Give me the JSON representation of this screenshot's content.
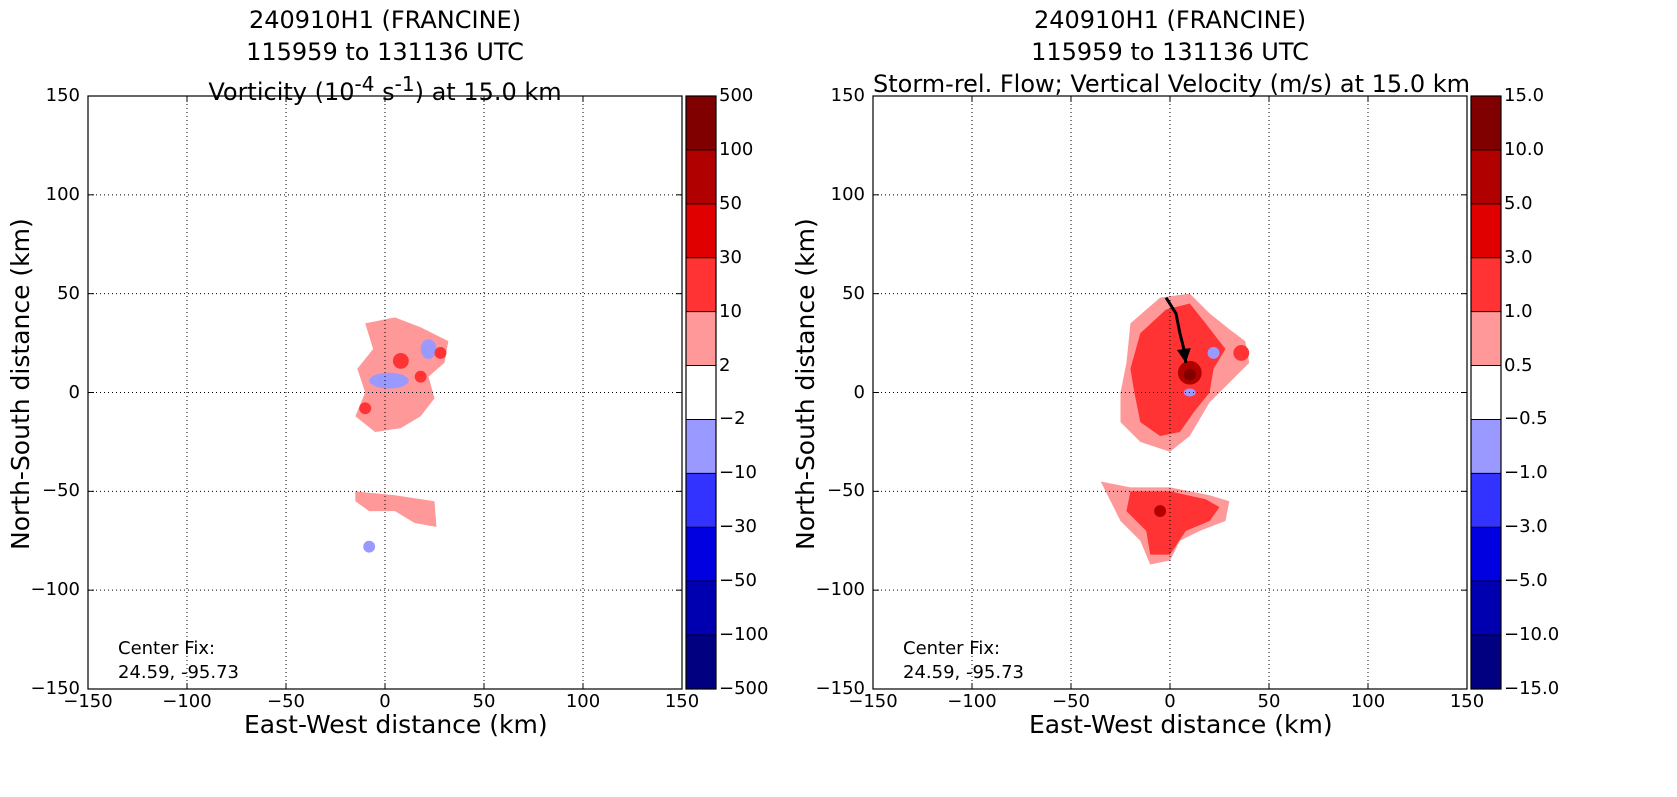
{
  "chart_data": [
    {
      "type": "heatmap",
      "title_lines": [
        "240910H1 (FRANCINE)",
        "115959 to 131136 UTC"
      ],
      "title_var_html": "Vorticity (10<sup>-4</sup> s<sup>-1</sup>) at 15.0 km",
      "xlabel": "East-West distance (km)",
      "ylabel": "North-South distance (km)",
      "xlim": [
        -150,
        150
      ],
      "ylim": [
        -150,
        150
      ],
      "xticks": [
        -150,
        -100,
        -50,
        0,
        50,
        100,
        150
      ],
      "yticks": [
        -150,
        -100,
        -50,
        0,
        50,
        100,
        150
      ],
      "grid": true,
      "colorbar": {
        "levels": [
          "−500",
          "−100",
          "−50",
          "−30",
          "−10",
          "−2",
          "2",
          "10",
          "30",
          "50",
          "100",
          "500"
        ],
        "colors": [
          "#000080",
          "#0000b0",
          "#0000e0",
          "#3333ff",
          "#9999ff",
          "#ffffff",
          "#ff9999",
          "#ff3333",
          "#e00000",
          "#b00000",
          "#800000"
        ]
      },
      "annotation": [
        "Center Fix:",
        "24.59, -95.73"
      ],
      "features": [
        {
          "shape": "poly",
          "value": "−2",
          "points": [
            [
              -25,
              40
            ],
            [
              -5,
              46
            ],
            [
              10,
              40
            ],
            [
              20,
              35
            ],
            [
              35,
              28
            ],
            [
              40,
              20
            ],
            [
              35,
              5
            ],
            [
              25,
              -5
            ],
            [
              20,
              -15
            ],
            [
              10,
              -22
            ],
            [
              0,
              -25
            ],
            [
              -12,
              -22
            ],
            [
              -22,
              -15
            ],
            [
              -25,
              -5
            ],
            [
              -25,
              8
            ],
            [
              -20,
              18
            ],
            [
              -22,
              28
            ]
          ]
        },
        {
          "shape": "poly",
          "value": "2",
          "points": [
            [
              -10,
              35
            ],
            [
              5,
              38
            ],
            [
              18,
              33
            ],
            [
              32,
              26
            ],
            [
              30,
              15
            ],
            [
              22,
              8
            ],
            [
              25,
              -3
            ],
            [
              18,
              -12
            ],
            [
              8,
              -18
            ],
            [
              -5,
              -20
            ],
            [
              -15,
              -12
            ],
            [
              -10,
              0
            ],
            [
              -14,
              12
            ],
            [
              -6,
              22
            ]
          ]
        },
        {
          "shape": "ellipse",
          "value": "−10",
          "cx": 2,
          "cy": 6,
          "rx": 10,
          "ry": 4
        },
        {
          "shape": "ellipse",
          "value": "−10",
          "cx": 22,
          "cy": 22,
          "rx": 4,
          "ry": 5
        },
        {
          "shape": "ellipse",
          "value": "10",
          "cx": 8,
          "cy": 16,
          "rx": 4,
          "ry": 4
        },
        {
          "shape": "ellipse",
          "value": "10",
          "cx": -10,
          "cy": -8,
          "rx": 3,
          "ry": 3
        },
        {
          "shape": "ellipse",
          "value": "10",
          "cx": 28,
          "cy": 20,
          "rx": 3,
          "ry": 3
        },
        {
          "shape": "ellipse",
          "value": "10",
          "cx": 18,
          "cy": 8,
          "rx": 3,
          "ry": 3
        },
        {
          "shape": "poly",
          "value": "−2",
          "points": [
            [
              -22,
              -48
            ],
            [
              0,
              -50
            ],
            [
              25,
              -58
            ],
            [
              20,
              -68
            ],
            [
              5,
              -72
            ],
            [
              -5,
              -72
            ],
            [
              -10,
              -78
            ],
            [
              -12,
              -85
            ],
            [
              -18,
              -80
            ],
            [
              -12,
              -68
            ],
            [
              -20,
              -58
            ]
          ]
        },
        {
          "shape": "poly",
          "value": "2",
          "points": [
            [
              -15,
              -50
            ],
            [
              5,
              -52
            ],
            [
              25,
              -55
            ],
            [
              26,
              -68
            ],
            [
              15,
              -66
            ],
            [
              5,
              -60
            ],
            [
              -8,
              -60
            ],
            [
              -15,
              -55
            ]
          ]
        },
        {
          "shape": "ellipse",
          "value": "−10",
          "cx": -8,
          "cy": -78,
          "rx": 3,
          "ry": 3
        }
      ]
    },
    {
      "type": "heatmap",
      "title_lines": [
        "240910H1 (FRANCINE)",
        "115959 to 131136 UTC"
      ],
      "title_var_html": "Storm-rel. Flow; Vertical Velocity (m/s) at 15.0 km",
      "xlabel": "East-West distance (km)",
      "ylabel": "North-South distance (km)",
      "xlim": [
        -150,
        150
      ],
      "ylim": [
        -150,
        150
      ],
      "xticks": [
        -150,
        -100,
        -50,
        0,
        50,
        100,
        150
      ],
      "yticks": [
        -150,
        -100,
        -50,
        0,
        50,
        100,
        150
      ],
      "grid": true,
      "colorbar": {
        "levels": [
          "−15.0",
          "−10.0",
          "−5.0",
          "−3.0",
          "−1.0",
          "−0.5",
          "0.5",
          "1.0",
          "3.0",
          "5.0",
          "10.0",
          "15.0"
        ],
        "colors": [
          "#000080",
          "#0000b0",
          "#0000e0",
          "#3333ff",
          "#9999ff",
          "#ffffff",
          "#ff9999",
          "#ff3333",
          "#e00000",
          "#b00000",
          "#800000"
        ]
      },
      "annotation": [
        "Center Fix:",
        "24.59, -95.73"
      ],
      "features": [
        {
          "shape": "poly",
          "value": "0.5",
          "points": [
            [
              -20,
              35
            ],
            [
              -5,
              48
            ],
            [
              10,
              50
            ],
            [
              20,
              40
            ],
            [
              30,
              32
            ],
            [
              38,
              26
            ],
            [
              40,
              15
            ],
            [
              30,
              5
            ],
            [
              20,
              -5
            ],
            [
              10,
              -22
            ],
            [
              0,
              -30
            ],
            [
              -15,
              -25
            ],
            [
              -25,
              -15
            ],
            [
              -25,
              0
            ],
            [
              -22,
              15
            ]
          ]
        },
        {
          "shape": "poly",
          "value": "1.0",
          "points": [
            [
              -15,
              30
            ],
            [
              -2,
              42
            ],
            [
              10,
              45
            ],
            [
              18,
              35
            ],
            [
              28,
              22
            ],
            [
              22,
              12
            ],
            [
              20,
              0
            ],
            [
              12,
              -10
            ],
            [
              5,
              -20
            ],
            [
              -5,
              -22
            ],
            [
              -15,
              -15
            ],
            [
              -18,
              0
            ],
            [
              -20,
              12
            ]
          ]
        },
        {
          "shape": "ellipse",
          "value": "5.0",
          "cx": 10,
          "cy": 10,
          "rx": 6,
          "ry": 6
        },
        {
          "shape": "ellipse",
          "value": "10.0",
          "cx": 10,
          "cy": 9,
          "rx": 3,
          "ry": 3
        },
        {
          "shape": "ellipse",
          "value": "1.0",
          "cx": 36,
          "cy": 20,
          "rx": 4,
          "ry": 4
        },
        {
          "shape": "ellipse",
          "value": "−1.0",
          "cx": 22,
          "cy": 20,
          "rx": 3,
          "ry": 3
        },
        {
          "shape": "ellipse",
          "value": "−1.0",
          "cx": 10,
          "cy": 0,
          "rx": 3,
          "ry": 2
        },
        {
          "shape": "poly",
          "value": "0.5",
          "points": [
            [
              -35,
              -45
            ],
            [
              -20,
              -48
            ],
            [
              0,
              -48
            ],
            [
              20,
              -52
            ],
            [
              30,
              -55
            ],
            [
              28,
              -65
            ],
            [
              15,
              -70
            ],
            [
              5,
              -75
            ],
            [
              0,
              -85
            ],
            [
              -10,
              -87
            ],
            [
              -15,
              -75
            ],
            [
              -25,
              -65
            ],
            [
              -30,
              -55
            ]
          ]
        },
        {
          "shape": "poly",
          "value": "1.0",
          "points": [
            [
              -20,
              -50
            ],
            [
              0,
              -50
            ],
            [
              18,
              -54
            ],
            [
              25,
              -58
            ],
            [
              20,
              -65
            ],
            [
              8,
              -70
            ],
            [
              0,
              -82
            ],
            [
              -10,
              -82
            ],
            [
              -12,
              -70
            ],
            [
              -22,
              -60
            ]
          ]
        },
        {
          "shape": "ellipse",
          "value": "5.0",
          "cx": -5,
          "cy": -60,
          "rx": 3,
          "ry": 3
        }
      ],
      "streamline": [
        [
          -2,
          48
        ],
        [
          3,
          40
        ],
        [
          5,
          30
        ],
        [
          7,
          22
        ],
        [
          8,
          15
        ]
      ]
    }
  ]
}
